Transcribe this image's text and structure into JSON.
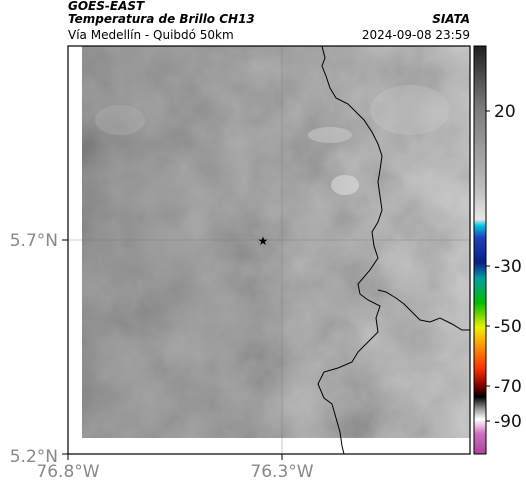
{
  "header": {
    "satellite": "GOES-EAST",
    "product": "Temperatura de Brillo CH13",
    "location": "Vía Medellín - Quibdó 50km",
    "organization": "SIATA",
    "timestamp": "2024-09-08 23:59"
  },
  "map": {
    "x_ticks": [
      "76.8°W",
      "76.3°W"
    ],
    "y_ticks": [
      "5.7°N",
      "5.2°N"
    ],
    "marker": "star-icon"
  },
  "colorbar": {
    "ticks": [
      "20",
      "-30",
      "-50",
      "-70",
      "-90"
    ],
    "colors": {
      "gray_light": "#e6e6e6",
      "gray_dark": "#555555",
      "cyan": "#00c8e0",
      "navy": "#0a1e8c",
      "green": "#00b000",
      "yellow": "#f0f000",
      "orange": "#ff7800",
      "red": "#c80000",
      "black": "#000000",
      "white": "#ffffff",
      "magenta": "#b040a0"
    }
  }
}
